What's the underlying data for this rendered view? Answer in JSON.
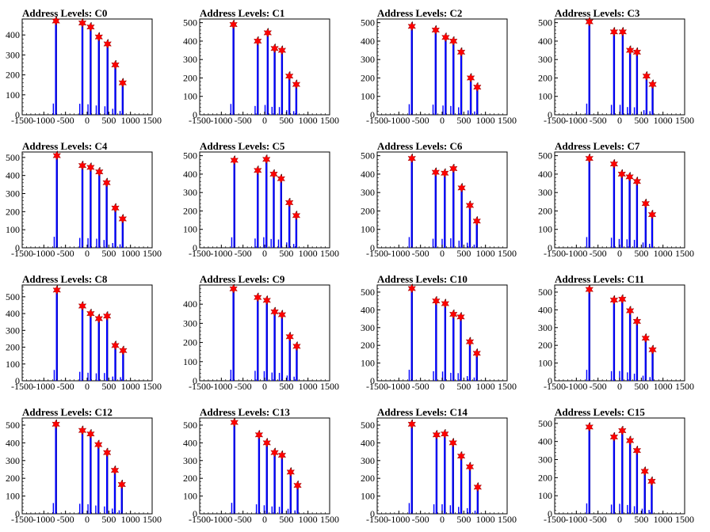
{
  "chart_data": [
    {
      "type": "histogram",
      "title": "Address Levels: C0",
      "xlim": [
        -1500,
        1500
      ],
      "ylim": [
        0,
        480
      ],
      "yticks": [
        0,
        100,
        200,
        300,
        400
      ],
      "xticks": [
        -1500,
        -1000,
        -500,
        0,
        500,
        1000,
        1500
      ],
      "peaks": [
        {
          "x": -720,
          "y": 470
        },
        {
          "x": -110,
          "y": 460
        },
        {
          "x": 80,
          "y": 440
        },
        {
          "x": 270,
          "y": 390
        },
        {
          "x": 470,
          "y": 355
        },
        {
          "x": 650,
          "y": 250
        },
        {
          "x": 820,
          "y": 160
        }
      ]
    },
    {
      "type": "histogram",
      "title": "Address Levels: C1",
      "xlim": [
        -1500,
        1500
      ],
      "ylim": [
        0,
        520
      ],
      "yticks": [
        0,
        100,
        200,
        300,
        400,
        500
      ],
      "xticks": [
        -1500,
        -1000,
        -500,
        0,
        500,
        1000,
        1500
      ],
      "peaks": [
        {
          "x": -720,
          "y": 490
        },
        {
          "x": -160,
          "y": 400
        },
        {
          "x": 70,
          "y": 445
        },
        {
          "x": 230,
          "y": 360
        },
        {
          "x": 400,
          "y": 350
        },
        {
          "x": 570,
          "y": 210
        },
        {
          "x": 730,
          "y": 165
        }
      ]
    },
    {
      "type": "histogram",
      "title": "Address Levels: C2",
      "xlim": [
        -1500,
        1500
      ],
      "ylim": [
        0,
        520
      ],
      "yticks": [
        0,
        100,
        200,
        300,
        400,
        500
      ],
      "xticks": [
        -1500,
        -1000,
        -500,
        0,
        500,
        1000,
        1500
      ],
      "peaks": [
        {
          "x": -700,
          "y": 480
        },
        {
          "x": -150,
          "y": 460
        },
        {
          "x": 80,
          "y": 420
        },
        {
          "x": 260,
          "y": 400
        },
        {
          "x": 440,
          "y": 340
        },
        {
          "x": 660,
          "y": 200
        },
        {
          "x": 810,
          "y": 150
        }
      ]
    },
    {
      "type": "histogram",
      "title": "Address Levels: C3",
      "xlim": [
        -1500,
        1500
      ],
      "ylim": [
        0,
        520
      ],
      "yticks": [
        0,
        100,
        200,
        300,
        400,
        500
      ],
      "xticks": [
        -1500,
        -1000,
        -500,
        0,
        500,
        1000,
        1500
      ],
      "peaks": [
        {
          "x": -700,
          "y": 505
        },
        {
          "x": -130,
          "y": 450
        },
        {
          "x": 70,
          "y": 450
        },
        {
          "x": 240,
          "y": 350
        },
        {
          "x": 400,
          "y": 340
        },
        {
          "x": 620,
          "y": 210
        },
        {
          "x": 760,
          "y": 165
        }
      ]
    },
    {
      "type": "histogram",
      "title": "Address Levels: C4",
      "xlim": [
        -1500,
        1500
      ],
      "ylim": [
        0,
        530
      ],
      "yticks": [
        0,
        100,
        200,
        300,
        400,
        500
      ],
      "xticks": [
        -1500,
        -1000,
        -500,
        0,
        500,
        1000,
        1500
      ],
      "peaks": [
        {
          "x": -700,
          "y": 510
        },
        {
          "x": -110,
          "y": 455
        },
        {
          "x": 80,
          "y": 445
        },
        {
          "x": 280,
          "y": 420
        },
        {
          "x": 450,
          "y": 360
        },
        {
          "x": 650,
          "y": 220
        },
        {
          "x": 820,
          "y": 160
        }
      ]
    },
    {
      "type": "histogram",
      "title": "Address Levels: C5",
      "xlim": [
        -1500,
        1500
      ],
      "ylim": [
        0,
        520
      ],
      "yticks": [
        0,
        100,
        200,
        300,
        400,
        500
      ],
      "xticks": [
        -1500,
        -1000,
        -500,
        0,
        500,
        1000,
        1500
      ],
      "peaks": [
        {
          "x": -700,
          "y": 475
        },
        {
          "x": -160,
          "y": 420
        },
        {
          "x": 40,
          "y": 480
        },
        {
          "x": 210,
          "y": 400
        },
        {
          "x": 380,
          "y": 375
        },
        {
          "x": 570,
          "y": 245
        },
        {
          "x": 730,
          "y": 175
        }
      ]
    },
    {
      "type": "histogram",
      "title": "Address Levels: C6",
      "xlim": [
        -1500,
        1500
      ],
      "ylim": [
        0,
        520
      ],
      "yticks": [
        0,
        100,
        200,
        300,
        400,
        500
      ],
      "xticks": [
        -1500,
        -1000,
        -500,
        0,
        500,
        1000,
        1500
      ],
      "peaks": [
        {
          "x": -700,
          "y": 485
        },
        {
          "x": -150,
          "y": 410
        },
        {
          "x": 60,
          "y": 405
        },
        {
          "x": 260,
          "y": 430
        },
        {
          "x": 450,
          "y": 325
        },
        {
          "x": 640,
          "y": 230
        },
        {
          "x": 800,
          "y": 145
        }
      ]
    },
    {
      "type": "histogram",
      "title": "Address Levels: C7",
      "xlim": [
        -1500,
        1500
      ],
      "ylim": [
        0,
        520
      ],
      "yticks": [
        0,
        100,
        200,
        300,
        400,
        500
      ],
      "xticks": [
        -1500,
        -1000,
        -500,
        0,
        500,
        1000,
        1500
      ],
      "peaks": [
        {
          "x": -700,
          "y": 485
        },
        {
          "x": -130,
          "y": 455
        },
        {
          "x": 50,
          "y": 400
        },
        {
          "x": 230,
          "y": 385
        },
        {
          "x": 400,
          "y": 360
        },
        {
          "x": 600,
          "y": 240
        },
        {
          "x": 750,
          "y": 180
        }
      ]
    },
    {
      "type": "histogram",
      "title": "Address Levels: C8",
      "xlim": [
        -1500,
        1500
      ],
      "ylim": [
        0,
        570
      ],
      "yticks": [
        0,
        100,
        200,
        300,
        400,
        500
      ],
      "xticks": [
        -1500,
        -1000,
        -500,
        0,
        500,
        1000,
        1500
      ],
      "peaks": [
        {
          "x": -700,
          "y": 540
        },
        {
          "x": -110,
          "y": 445
        },
        {
          "x": 80,
          "y": 400
        },
        {
          "x": 270,
          "y": 370
        },
        {
          "x": 460,
          "y": 385
        },
        {
          "x": 650,
          "y": 210
        },
        {
          "x": 830,
          "y": 180
        }
      ]
    },
    {
      "type": "histogram",
      "title": "Address Levels: C9",
      "xlim": [
        -1500,
        1500
      ],
      "ylim": [
        0,
        500
      ],
      "yticks": [
        0,
        100,
        200,
        300,
        400
      ],
      "xticks": [
        -1500,
        -1000,
        -500,
        0,
        500,
        1000,
        1500
      ],
      "peaks": [
        {
          "x": -720,
          "y": 480
        },
        {
          "x": -160,
          "y": 435
        },
        {
          "x": 50,
          "y": 420
        },
        {
          "x": 230,
          "y": 360
        },
        {
          "x": 400,
          "y": 345
        },
        {
          "x": 580,
          "y": 230
        },
        {
          "x": 740,
          "y": 180
        }
      ]
    },
    {
      "type": "histogram",
      "title": "Address Levels: C10",
      "xlim": [
        -1500,
        1500
      ],
      "ylim": [
        0,
        540
      ],
      "yticks": [
        0,
        100,
        200,
        300,
        400,
        500
      ],
      "xticks": [
        -1500,
        -1000,
        -500,
        0,
        500,
        1000,
        1500
      ],
      "peaks": [
        {
          "x": -700,
          "y": 520
        },
        {
          "x": -140,
          "y": 450
        },
        {
          "x": 70,
          "y": 435
        },
        {
          "x": 260,
          "y": 375
        },
        {
          "x": 430,
          "y": 360
        },
        {
          "x": 640,
          "y": 220
        },
        {
          "x": 800,
          "y": 155
        }
      ]
    },
    {
      "type": "histogram",
      "title": "Address Levels: C11",
      "xlim": [
        -1500,
        1500
      ],
      "ylim": [
        0,
        540
      ],
      "yticks": [
        0,
        100,
        200,
        300,
        400,
        500
      ],
      "xticks": [
        -1500,
        -1000,
        -500,
        0,
        500,
        1000,
        1500
      ],
      "peaks": [
        {
          "x": -700,
          "y": 515
        },
        {
          "x": -130,
          "y": 455
        },
        {
          "x": 60,
          "y": 460
        },
        {
          "x": 240,
          "y": 395
        },
        {
          "x": 400,
          "y": 335
        },
        {
          "x": 600,
          "y": 240
        },
        {
          "x": 760,
          "y": 175
        }
      ]
    },
    {
      "type": "histogram",
      "title": "Address Levels: C12",
      "xlim": [
        -1500,
        1500
      ],
      "ylim": [
        0,
        540
      ],
      "yticks": [
        0,
        100,
        200,
        300,
        400,
        500
      ],
      "xticks": [
        -1500,
        -1000,
        -500,
        0,
        500,
        1000,
        1500
      ],
      "peaks": [
        {
          "x": -720,
          "y": 505
        },
        {
          "x": -110,
          "y": 470
        },
        {
          "x": 80,
          "y": 450
        },
        {
          "x": 260,
          "y": 390
        },
        {
          "x": 460,
          "y": 345
        },
        {
          "x": 640,
          "y": 245
        },
        {
          "x": 800,
          "y": 165
        }
      ]
    },
    {
      "type": "histogram",
      "title": "Address Levels: C13",
      "xlim": [
        -1500,
        1500
      ],
      "ylim": [
        0,
        540
      ],
      "yticks": [
        0,
        100,
        200,
        300,
        400,
        500
      ],
      "xticks": [
        -1500,
        -1000,
        -500,
        0,
        500,
        1000,
        1500
      ],
      "peaks": [
        {
          "x": -700,
          "y": 515
        },
        {
          "x": -130,
          "y": 445
        },
        {
          "x": 50,
          "y": 400
        },
        {
          "x": 230,
          "y": 345
        },
        {
          "x": 400,
          "y": 330
        },
        {
          "x": 600,
          "y": 235
        },
        {
          "x": 760,
          "y": 160
        }
      ]
    },
    {
      "type": "histogram",
      "title": "Address Levels: C14",
      "xlim": [
        -1500,
        1500
      ],
      "ylim": [
        0,
        540
      ],
      "yticks": [
        0,
        100,
        200,
        300,
        400,
        500
      ],
      "xticks": [
        -1500,
        -1000,
        -500,
        0,
        500,
        1000,
        1500
      ],
      "peaks": [
        {
          "x": -700,
          "y": 505
        },
        {
          "x": -130,
          "y": 445
        },
        {
          "x": 60,
          "y": 450
        },
        {
          "x": 250,
          "y": 400
        },
        {
          "x": 440,
          "y": 325
        },
        {
          "x": 640,
          "y": 265
        },
        {
          "x": 820,
          "y": 150
        }
      ]
    },
    {
      "type": "histogram",
      "title": "Address Levels: C15",
      "xlim": [
        -1500,
        1500
      ],
      "ylim": [
        0,
        530
      ],
      "yticks": [
        0,
        100,
        200,
        300,
        400,
        500
      ],
      "xticks": [
        -1500,
        -1000,
        -500,
        0,
        500,
        1000,
        1500
      ],
      "peaks": [
        {
          "x": -700,
          "y": 480
        },
        {
          "x": -130,
          "y": 425
        },
        {
          "x": 60,
          "y": 460
        },
        {
          "x": 240,
          "y": 405
        },
        {
          "x": 400,
          "y": 350
        },
        {
          "x": 580,
          "y": 235
        },
        {
          "x": 740,
          "y": 180
        }
      ]
    }
  ],
  "colors": {
    "bar": "#0000ff",
    "line": "#000000",
    "marker": "#ff0000"
  }
}
